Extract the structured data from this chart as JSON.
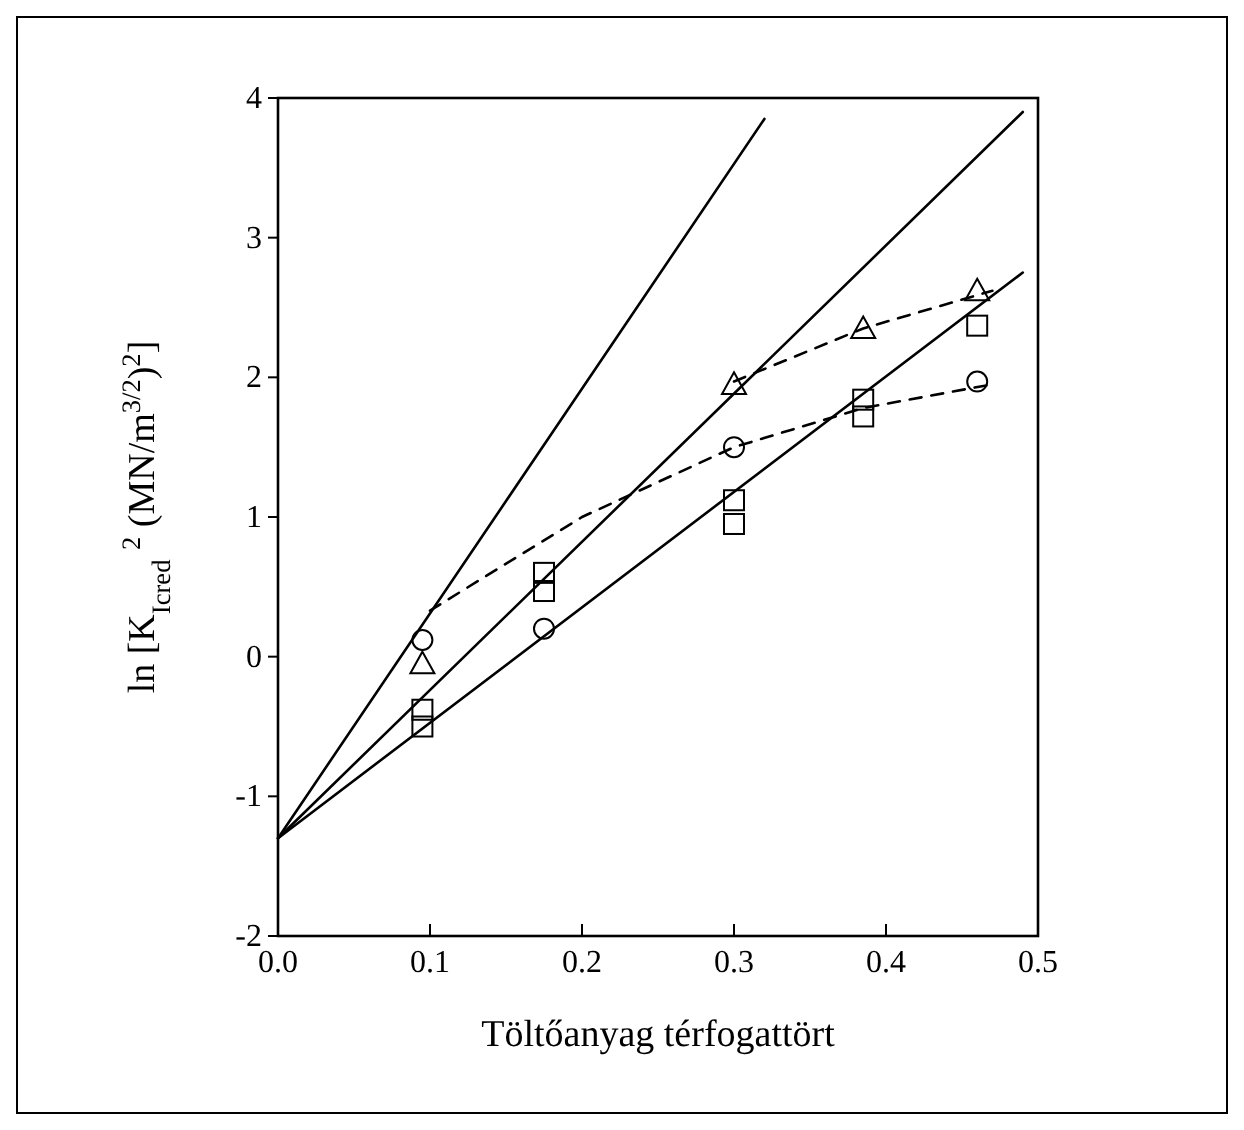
{
  "chart_data": {
    "type": "scatter",
    "xlabel": "Töltőanyag térfogattört",
    "ylabel": "ln [K$_{Icred}$ $^{2}$ (MN/m$^{3/2}$)$^{2}$]",
    "xlim": [
      0,
      0.5
    ],
    "ylim": [
      -2,
      4
    ],
    "xticks": [
      {
        "value": 0,
        "label": "0.0"
      },
      0.1,
      0.2,
      0.3,
      0.4,
      0.5
    ],
    "yticks": [
      -2,
      -1,
      0,
      1,
      2,
      3,
      4
    ],
    "grid": false,
    "series": [
      {
        "marker": "triangle",
        "color": "#000000",
        "x": [
          0.095,
          0.3,
          0.385,
          0.46
        ],
        "values": [
          -0.05,
          1.95,
          2.35,
          2.62
        ]
      },
      {
        "marker": "circle",
        "color": "#000000",
        "x": [
          0.095,
          0.175,
          0.3,
          0.46
        ],
        "values": [
          0.12,
          0.2,
          1.5,
          1.97
        ]
      },
      {
        "marker": "square",
        "color": "#000000",
        "x": [
          0.095,
          0.095,
          0.175,
          0.175,
          0.3,
          0.3,
          0.385,
          0.385,
          0.46
        ],
        "values": [
          -0.38,
          -0.5,
          0.6,
          0.47,
          1.12,
          0.95,
          1.84,
          1.72,
          2.37
        ]
      },
      {
        "type": "line",
        "marker": "none",
        "line_style": "solid",
        "color": "#000000",
        "x": [
          0,
          0.32
        ],
        "values": [
          -1.3,
          3.85
        ]
      },
      {
        "type": "line",
        "marker": "none",
        "line_style": "solid",
        "color": "#000000",
        "x": [
          0,
          0.49
        ],
        "values": [
          -1.3,
          3.9
        ]
      },
      {
        "type": "line",
        "marker": "none",
        "line_style": "solid",
        "color": "#000000",
        "x": [
          0,
          0.49
        ],
        "values": [
          -1.3,
          2.75
        ]
      },
      {
        "type": "line",
        "marker": "none",
        "line_style": "dashed",
        "color": "#000000",
        "x": [
          0.1,
          0.2,
          0.3,
          0.385,
          0.47
        ],
        "values": [
          0.33,
          1.0,
          1.5,
          1.78,
          1.95
        ]
      },
      {
        "type": "line",
        "marker": "none",
        "line_style": "dashed",
        "color": "#000000",
        "x": [
          0.3,
          0.385,
          0.47
        ],
        "values": [
          1.97,
          2.35,
          2.62
        ]
      }
    ]
  }
}
